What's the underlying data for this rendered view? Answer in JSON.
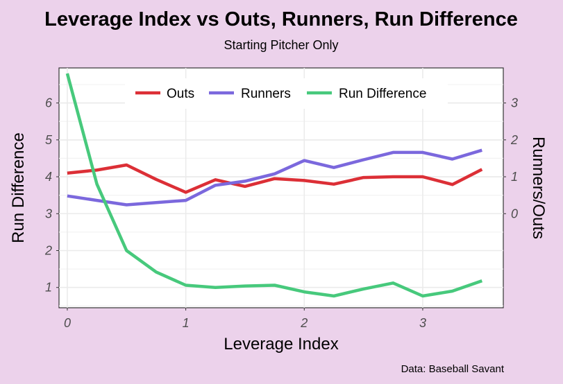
{
  "chart_data": {
    "type": "line",
    "title": "Leverage Index vs Outs, Runners, Run Difference",
    "subtitle": "Starting Pitcher Only",
    "caption": "Data: Baseball Savant",
    "xlabel": "Leverage Index",
    "ylabel": "Run Difference",
    "y2label": "Runners/Outs",
    "xlim": [
      -0.07,
      3.68
    ],
    "ylim": [
      0.45,
      6.95
    ],
    "y2lim": [
      -2.55,
      3.95
    ],
    "x_ticks": [
      0,
      1,
      2,
      3
    ],
    "y_ticks": [
      1,
      2,
      3,
      4,
      5,
      6
    ],
    "y2_ticks": [
      0,
      1,
      2,
      3
    ],
    "grid": true,
    "legend_position": "top",
    "series": [
      {
        "name": "Outs",
        "axis": "right",
        "color": "#dc2f36",
        "x": [
          0,
          0.25,
          0.5,
          0.75,
          1.0,
          1.25,
          1.5,
          1.75,
          2.0,
          2.25,
          2.5,
          2.75,
          3.0,
          3.25,
          3.5
        ],
        "values": [
          1.1,
          1.18,
          1.32,
          0.93,
          0.58,
          0.92,
          0.74,
          0.95,
          0.9,
          0.8,
          0.98,
          1.0,
          1.0,
          0.79,
          1.2
        ]
      },
      {
        "name": "Runners",
        "axis": "right",
        "color": "#7b68dd",
        "x": [
          0,
          0.25,
          0.5,
          0.75,
          1.0,
          1.25,
          1.5,
          1.75,
          2.0,
          2.25,
          2.5,
          2.75,
          3.0,
          3.25,
          3.5
        ],
        "values": [
          0.48,
          0.36,
          0.24,
          0.3,
          0.36,
          0.77,
          0.88,
          1.08,
          1.44,
          1.25,
          1.46,
          1.66,
          1.66,
          1.48,
          1.72
        ]
      },
      {
        "name": "Run Difference",
        "axis": "left",
        "color": "#47c97c",
        "x": [
          0,
          0.25,
          0.5,
          0.75,
          1.0,
          1.25,
          1.5,
          1.75,
          2.0,
          2.25,
          2.5,
          2.75,
          3.0,
          3.25,
          3.5
        ],
        "values": [
          6.8,
          3.8,
          2.0,
          1.42,
          1.06,
          1.0,
          1.04,
          1.06,
          0.88,
          0.77,
          0.96,
          1.12,
          0.77,
          0.9,
          1.18
        ]
      }
    ]
  }
}
